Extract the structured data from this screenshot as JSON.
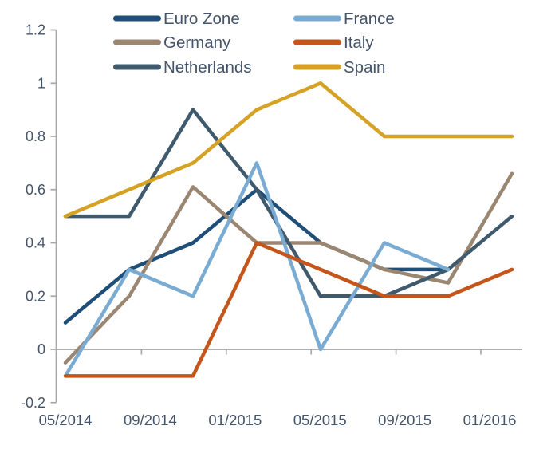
{
  "chart_data": {
    "type": "line",
    "title": "",
    "xlabel": "",
    "ylabel": "",
    "x_axis": {
      "tick_labels": [
        "05/2014",
        "09/2014",
        "01/2015",
        "05/2015",
        "09/2015",
        "01/2016"
      ],
      "note": "date axis, labels every 4 months; data points quarterly"
    },
    "y_axis": {
      "tick_labels": [
        "1.2",
        "1",
        "0.8",
        "0.6",
        "0.4",
        "0.2",
        "0",
        "-0.2"
      ],
      "tick_values": [
        1.2,
        1.0,
        0.8,
        0.6,
        0.4,
        0.2,
        0.0,
        -0.2
      ],
      "ylim": [
        -0.2,
        1.2
      ]
    },
    "grid": "off",
    "legend_position": "top, two columns",
    "x_points": [
      "05/2014",
      "08/2014",
      "11/2014",
      "02/2015",
      "05/2015",
      "08/2015",
      "11/2015",
      "02/2016"
    ],
    "series": [
      {
        "name": "Euro Zone",
        "color": "#1F4E79",
        "values": [
          0.1,
          0.3,
          0.4,
          0.6,
          0.4,
          0.3,
          0.3,
          null
        ]
      },
      {
        "name": "Germany",
        "color": "#9B8672",
        "values": [
          -0.05,
          0.2,
          0.61,
          0.4,
          0.4,
          0.3,
          0.25,
          0.66
        ]
      },
      {
        "name": "Netherlands",
        "color": "#3F5A6D",
        "values": [
          0.5,
          0.5,
          0.9,
          0.6,
          0.2,
          0.2,
          0.3,
          0.5
        ]
      },
      {
        "name": "France",
        "color": "#7AACD3",
        "values": [
          -0.1,
          0.3,
          0.2,
          0.7,
          0.0,
          0.4,
          0.3,
          null
        ]
      },
      {
        "name": "Italy",
        "color": "#C4561B",
        "values": [
          -0.1,
          -0.1,
          -0.1,
          0.4,
          0.3,
          0.2,
          0.2,
          0.3
        ]
      },
      {
        "name": "Spain",
        "color": "#D5A226",
        "values": [
          0.5,
          0.6,
          0.7,
          0.9,
          1.0,
          0.8,
          0.8,
          0.8
        ]
      }
    ],
    "legend_columns": [
      [
        "Euro Zone",
        "Germany",
        "Netherlands"
      ],
      [
        "France",
        "Italy",
        "Spain"
      ]
    ]
  },
  "style": {
    "text_color": "#44546A",
    "axis_color": "#A6A6A6",
    "background": "#FFFFFF"
  }
}
